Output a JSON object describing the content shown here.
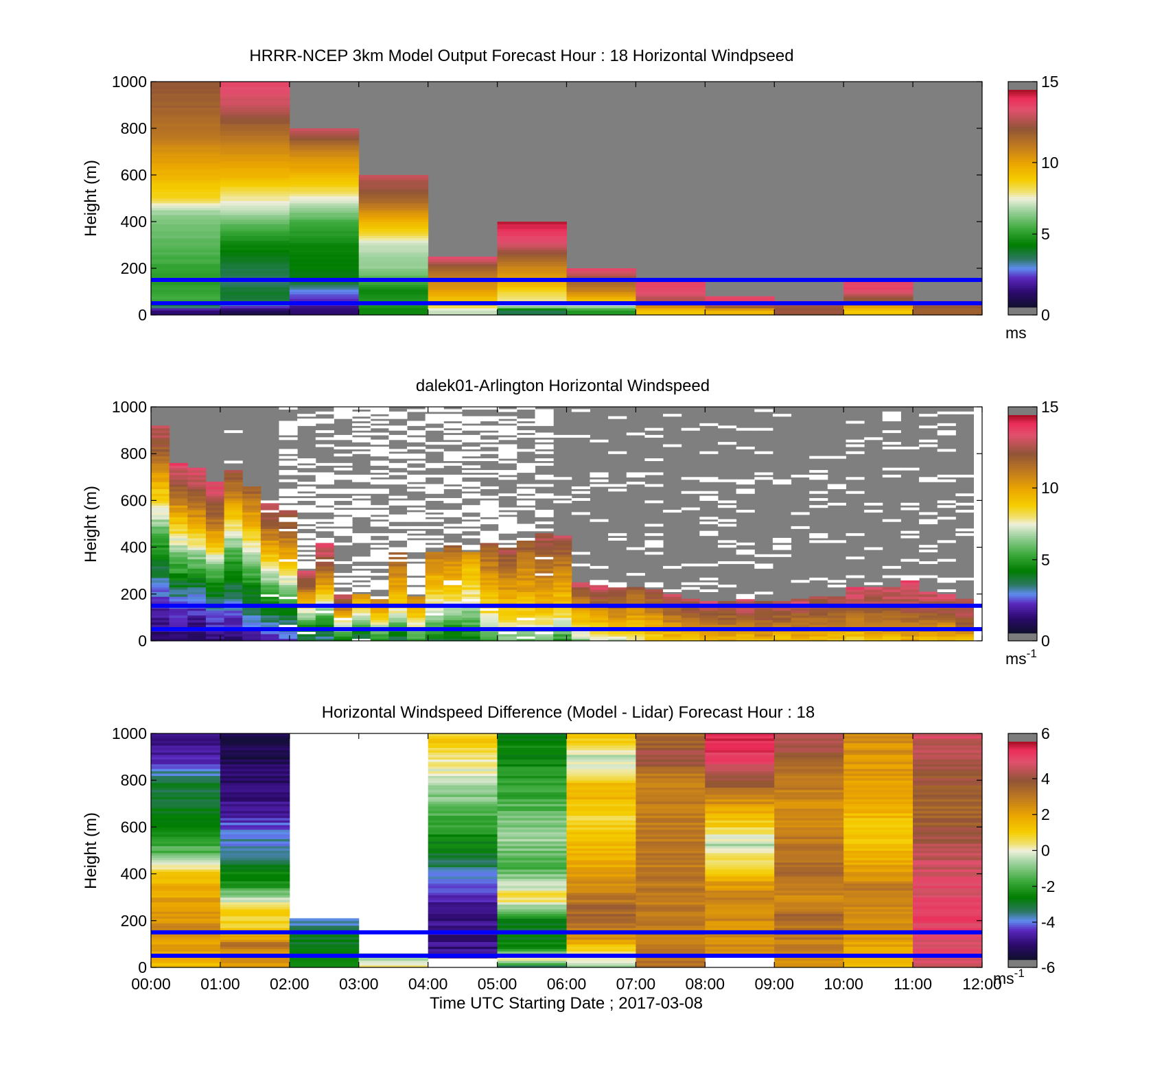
{
  "chart_data": [
    {
      "type": "heatmap",
      "title": "HRRR-NCEP 3km Model Output   Forecast Hour : 18 Horizontal Windpseed",
      "ylabel": "Height (m)",
      "xlabel": "",
      "ylim": [
        0,
        1000
      ],
      "yticks": [
        "0",
        "200",
        "400",
        "600",
        "800",
        "1000"
      ],
      "xlim_hours": [
        0,
        12
      ],
      "colorbar": {
        "min": 0,
        "max": 15,
        "ticks": [
          "0",
          "5",
          "10",
          "15"
        ],
        "unit": "ms",
        "unit_sup": ""
      },
      "reference_lines_m": [
        150,
        50
      ],
      "columns_hour_start": [
        0,
        1,
        2,
        3,
        4,
        5,
        6,
        7,
        8,
        9,
        10,
        11
      ],
      "columns": [
        [
          [
            20,
            1.0
          ],
          [
            50,
            5.5
          ],
          [
            150,
            5.0
          ],
          [
            250,
            5.5
          ],
          [
            350,
            6.0
          ],
          [
            400,
            6.2
          ],
          [
            450,
            6.8
          ],
          [
            500,
            8.5
          ],
          [
            600,
            9.5
          ],
          [
            700,
            10.5
          ],
          [
            800,
            11.5
          ],
          [
            900,
            12.0
          ],
          [
            1000,
            12.3
          ]
        ],
        [
          [
            20,
            0.5
          ],
          [
            50,
            3.5
          ],
          [
            100,
            3.8
          ],
          [
            150,
            3.2
          ],
          [
            300,
            4.5
          ],
          [
            400,
            6.0
          ],
          [
            450,
            7.0
          ],
          [
            500,
            7.8
          ],
          [
            600,
            9.5
          ],
          [
            700,
            10.5
          ],
          [
            800,
            11.8
          ],
          [
            900,
            13.3
          ],
          [
            1000,
            14.0
          ]
        ],
        [
          [
            20,
            1.0
          ],
          [
            50,
            1.8
          ],
          [
            100,
            2.5
          ],
          [
            150,
            4.0
          ],
          [
            200,
            4.2
          ],
          [
            300,
            4.5
          ],
          [
            400,
            5.5
          ],
          [
            450,
            6.5
          ],
          [
            500,
            7.5
          ],
          [
            600,
            9.5
          ],
          [
            700,
            10.8
          ],
          [
            800,
            13.5
          ]
        ],
        [
          [
            20,
            4.5
          ],
          [
            50,
            5.0
          ],
          [
            100,
            4.5
          ],
          [
            150,
            5.5
          ],
          [
            200,
            6.5
          ],
          [
            300,
            7.0
          ],
          [
            350,
            8.5
          ],
          [
            400,
            9.5
          ],
          [
            450,
            10.8
          ],
          [
            500,
            12.0
          ],
          [
            600,
            13.2
          ]
        ],
        [
          [
            20,
            7.0
          ],
          [
            40,
            8.5
          ],
          [
            100,
            10.0
          ],
          [
            200,
            12.0
          ],
          [
            250,
            14.0
          ]
        ],
        [
          [
            20,
            3.5
          ],
          [
            40,
            7.5
          ],
          [
            100,
            8.5
          ],
          [
            150,
            10.0
          ],
          [
            200,
            10.8
          ],
          [
            250,
            12.0
          ],
          [
            300,
            13.5
          ],
          [
            350,
            14.2
          ],
          [
            400,
            15.0
          ]
        ],
        [
          [
            20,
            5.0
          ],
          [
            60,
            9.0
          ],
          [
            100,
            10.8
          ],
          [
            150,
            12.0
          ],
          [
            200,
            14.2
          ]
        ],
        [
          [
            20,
            9.0
          ],
          [
            60,
            12.8
          ],
          [
            100,
            13.8
          ],
          [
            150,
            14.2
          ]
        ],
        [
          [
            20,
            9.5
          ],
          [
            40,
            13.0
          ],
          [
            60,
            14.0
          ],
          [
            80,
            14.0
          ]
        ],
        [
          [
            20,
            12.5
          ],
          [
            40,
            12.5
          ],
          [
            60,
            14.0
          ]
        ],
        [
          [
            20,
            9.0
          ],
          [
            60,
            12.0
          ],
          [
            100,
            13.8
          ],
          [
            150,
            14.2
          ]
        ],
        [
          [
            20,
            12.0
          ],
          [
            40,
            12.5
          ],
          [
            60,
            13.5
          ]
        ]
      ]
    },
    {
      "type": "heatmap",
      "title": "dalek01-Arlington  Horizontal Windspeed",
      "ylabel": "Height (m)",
      "xlabel": "",
      "ylim": [
        0,
        1000
      ],
      "yticks": [
        "0",
        "200",
        "400",
        "600",
        "800",
        "1000"
      ],
      "xlim_hours": [
        0,
        12
      ],
      "colorbar": {
        "min": 0,
        "max": 15,
        "ticks": [
          "0",
          "5",
          "10",
          "15"
        ],
        "unit": "ms",
        "unit_sup": "-1"
      },
      "reference_lines_m": [
        150,
        50
      ],
      "profile_top_m": [
        920,
        760,
        740,
        680,
        730,
        660,
        600,
        560,
        300,
        420,
        200,
        200,
        180,
        380,
        190,
        380,
        410,
        380,
        420,
        400,
        430,
        460,
        450,
        250,
        240,
        230,
        230,
        220,
        200,
        180,
        170,
        170,
        180,
        170,
        170,
        180,
        190,
        190,
        230,
        230,
        230,
        260,
        210,
        200,
        180
      ],
      "profile_ws_ms": [
        [
          0.8,
          1.5,
          2.8,
          4.2,
          5.8,
          8.0,
          10.0,
          12.0,
          13.5
        ],
        [
          1.0,
          1.8,
          3.0,
          4.8,
          6.5,
          8.5,
          10.5,
          12.5,
          14.0
        ],
        [
          0.6,
          1.5,
          2.8,
          4.5,
          6.8,
          9.0,
          11.0,
          12.8,
          14.0
        ],
        [
          1.2,
          2.0,
          3.5,
          5.0,
          7.0,
          9.5,
          11.5,
          13.0,
          14.0
        ],
        [
          1.0,
          2.2,
          3.5,
          4.8,
          6.5,
          9.0,
          11.0,
          12.8
        ],
        [
          1.5,
          3.0,
          4.5,
          6.0,
          8.5,
          10.5,
          12.5
        ],
        [
          1.8,
          3.5,
          5.0,
          7.5,
          10.0,
          12.0,
          13.5
        ],
        [
          2.0,
          4.0,
          6.5,
          9.5,
          11.5,
          13.0
        ],
        [
          3.5,
          5.5,
          8.5,
          12.0,
          13.5
        ],
        [
          3.0,
          5.0,
          8.0,
          10.5,
          12.5,
          14.0
        ],
        [
          4.5,
          6.5,
          9.0,
          12.0,
          13.5
        ],
        [
          3.0,
          5.5,
          8.5,
          11.0
        ],
        [
          4.5,
          7.0,
          9.5,
          11.5
        ],
        [
          3.5,
          6.0,
          8.5,
          10.0,
          11.0,
          12.5
        ],
        [
          5.0,
          7.5,
          9.5,
          11.5
        ],
        [
          4.0,
          6.5,
          8.5,
          10.0,
          11.5
        ],
        [
          3.5,
          5.5,
          8.0,
          9.5,
          10.5,
          12.0
        ],
        [
          4.0,
          6.0,
          8.0,
          9.0,
          10.5
        ],
        [
          5.0,
          8.0,
          9.5,
          11.0,
          12.5
        ],
        [
          6.0,
          8.5,
          10.0,
          11.5,
          13.0
        ],
        [
          5.5,
          8.5,
          10.0,
          11.0,
          12.5
        ],
        [
          6.0,
          9.0,
          10.5,
          12.0,
          13.0
        ],
        [
          5.0,
          8.5,
          10.0,
          11.5,
          13.5
        ],
        [
          6.5,
          8.5,
          10.0,
          12.0,
          13.5
        ],
        [
          7.5,
          9.0,
          10.5,
          12.5,
          14.0
        ],
        [
          7.0,
          9.5,
          11.0,
          12.0,
          13.0
        ],
        [
          8.0,
          9.5,
          11.0,
          12.5
        ],
        [
          8.5,
          10.0,
          11.5,
          13.0
        ],
        [
          9.0,
          10.5,
          12.0,
          13.5
        ],
        [
          9.0,
          11.0,
          12.5,
          13.0
        ],
        [
          9.0,
          10.5,
          12.5,
          13.5
        ],
        [
          9.5,
          11.0,
          12.5,
          13.0
        ],
        [
          9.0,
          11.0,
          13.0,
          13.5
        ],
        [
          9.5,
          11.5,
          12.5,
          13.0
        ],
        [
          9.0,
          11.0,
          12.5,
          13.5
        ],
        [
          9.5,
          11.0,
          12.5,
          13.5
        ],
        [
          9.0,
          11.0,
          12.5,
          13.0
        ],
        [
          9.0,
          11.0,
          12.0,
          13.5
        ],
        [
          8.5,
          10.5,
          12.0,
          13.0,
          14.0
        ],
        [
          9.0,
          10.5,
          12.0,
          13.0,
          13.5
        ],
        [
          9.0,
          11.0,
          12.0,
          13.0,
          13.5
        ],
        [
          9.5,
          11.0,
          12.5,
          13.5,
          14.0
        ],
        [
          9.0,
          11.0,
          12.0,
          13.0,
          13.5
        ],
        [
          9.5,
          10.5,
          12.0,
          13.0,
          13.5
        ],
        [
          9.0,
          11.0,
          12.5,
          13.0,
          13.5
        ]
      ]
    },
    {
      "type": "heatmap",
      "title": "Horizontal Windspeed Difference (Model - Lidar) Forecast Hour : 18",
      "ylabel": "Height (m)",
      "xlabel": "Time UTC  Starting Date ; 2017-03-08",
      "ylim": [
        0,
        1000
      ],
      "yticks": [
        "0",
        "200",
        "400",
        "600",
        "800",
        "1000"
      ],
      "xticks": [
        "00:00",
        "01:00",
        "02:00",
        "03:00",
        "04:00",
        "05:00",
        "06:00",
        "07:00",
        "08:00",
        "09:00",
        "10:00",
        "11:00",
        "12:00"
      ],
      "xlim_hours": [
        0,
        12
      ],
      "colorbar": {
        "min": -6,
        "max": 6,
        "ticks": [
          "-6",
          "-4",
          "-2",
          "0",
          "2",
          "4",
          "6"
        ],
        "unit": "ms",
        "unit_sup": "-1"
      },
      "reference_lines_m": [
        150,
        50
      ],
      "columns_hour_start": [
        0,
        1,
        2,
        3,
        4,
        5,
        6,
        7,
        8,
        9,
        10,
        11
      ],
      "columns": [
        [
          [
            0,
            1.5
          ],
          [
            150,
            2.5
          ],
          [
            300,
            2.0
          ],
          [
            400,
            1.2
          ],
          [
            450,
            -0.5
          ],
          [
            500,
            -1.5
          ],
          [
            600,
            -2.3
          ],
          [
            700,
            -2.8
          ],
          [
            800,
            -3.2
          ],
          [
            850,
            -4.0
          ],
          [
            920,
            -4.8
          ],
          [
            980,
            -5.2
          ],
          [
            1000,
            -5.2
          ]
        ],
        [
          [
            0,
            2.0
          ],
          [
            100,
            3.0
          ],
          [
            160,
            1.0
          ],
          [
            250,
            0.8
          ],
          [
            300,
            -0.5
          ],
          [
            350,
            -2.0
          ],
          [
            420,
            -2.8
          ],
          [
            500,
            -3.5
          ],
          [
            600,
            -4.2
          ],
          [
            700,
            -5.0
          ],
          [
            800,
            -5.3
          ],
          [
            900,
            -5.6
          ],
          [
            1000,
            -5.6
          ]
        ],
        [
          [
            0,
            -2.5
          ],
          [
            150,
            -3.0
          ],
          [
            180,
            -3.8
          ],
          [
            210,
            -3.8
          ]
        ],
        [
          [
            0,
            0.5
          ],
          [
            40,
            -0.5
          ],
          [
            60,
            -1.0
          ],
          [
            120,
            null
          ]
        ],
        [
          [
            0,
            1.0
          ],
          [
            40,
            null
          ],
          [
            220,
            -5.0
          ],
          [
            240,
            -5.0
          ],
          [
            960,
            1.0
          ],
          [
            1000,
            1.0
          ]
        ],
        [
          [
            0,
            -3.5
          ],
          [
            40,
            0.5
          ],
          [
            90,
            -2.5
          ],
          [
            200,
            -3.0
          ],
          [
            300,
            0.8
          ],
          [
            420,
            -1.5
          ],
          [
            550,
            -0.8
          ],
          [
            700,
            -1.5
          ],
          [
            900,
            -2.5
          ],
          [
            1000,
            -2.5
          ]
        ],
        [
          [
            0,
            -1.0
          ],
          [
            60,
            0.5
          ],
          [
            150,
            3.0
          ],
          [
            250,
            3.5
          ],
          [
            350,
            2.5
          ],
          [
            500,
            1.5
          ],
          [
            650,
            0.8
          ],
          [
            750,
            1.8
          ],
          [
            900,
            -0.5
          ],
          [
            1000,
            1.5
          ]
        ],
        [
          [
            660,
            3.0
          ],
          [
            800,
            2.5
          ],
          [
            900,
            4.5
          ],
          [
            960,
            3.5
          ],
          [
            1000,
            3.5
          ]
        ],
        [
          [
            0,
            3.0
          ],
          [
            60,
            null
          ],
          [
            280,
            2.5
          ],
          [
            300,
            3.0
          ],
          [
            520,
            -0.5
          ],
          [
            900,
            5.5
          ],
          [
            940,
            5.5
          ],
          [
            1000,
            5.5
          ]
        ],
        [
          [
            0,
            2.5
          ],
          [
            150,
            3.0
          ],
          [
            220,
            3.5
          ],
          [
            300,
            2.5
          ],
          [
            400,
            3.5
          ],
          [
            500,
            3.0
          ],
          [
            700,
            2.5
          ],
          [
            800,
            3.0
          ],
          [
            1000,
            4.5
          ]
        ],
        [
          [
            0,
            1.5
          ],
          [
            100,
            2.0
          ],
          [
            210,
            2.5
          ],
          [
            320,
            3.0
          ],
          [
            500,
            1.5
          ],
          [
            600,
            1.0
          ],
          [
            700,
            2.0
          ],
          [
            1000,
            2.5
          ]
        ],
        [
          [
            0,
            4.5
          ],
          [
            100,
            5.0
          ],
          [
            200,
            5.2
          ],
          [
            350,
            5.0
          ],
          [
            500,
            4.5
          ],
          [
            650,
            3.5
          ],
          [
            830,
            4.0
          ],
          [
            950,
            4.5
          ],
          [
            1000,
            5.0
          ]
        ]
      ]
    }
  ]
}
